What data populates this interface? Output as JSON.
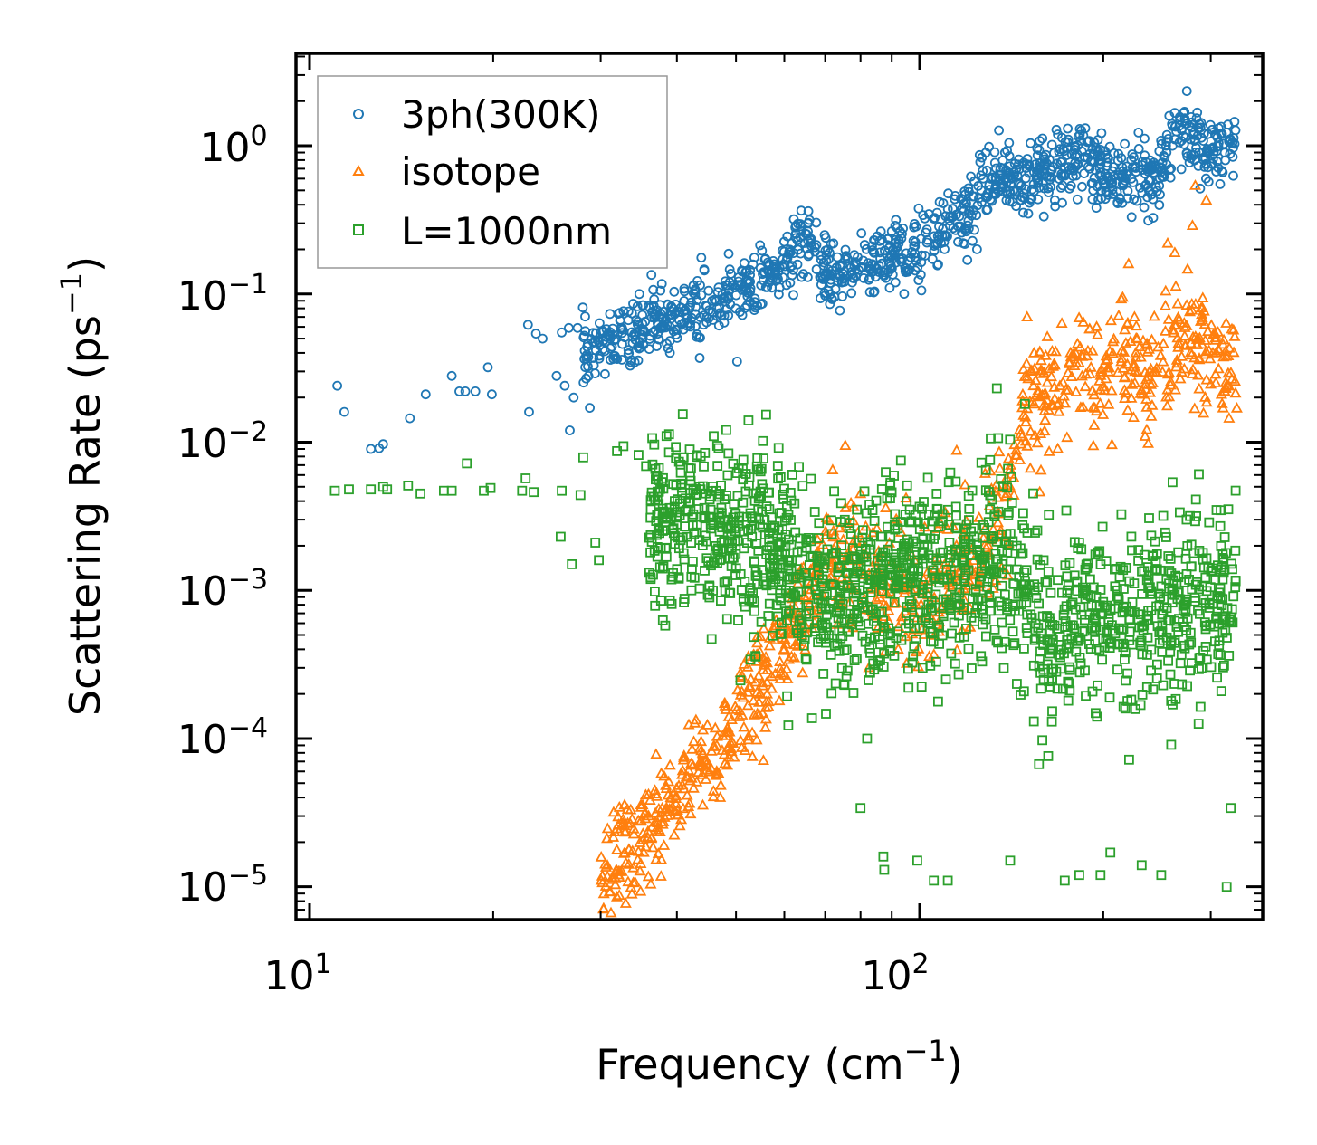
{
  "chart_data": {
    "type": "scatter",
    "title": "",
    "xlabel": "Frequency (cm",
    "xlabel_sup": "−1",
    "xlabel_close": ")",
    "ylabel": "Scattering Rate (ps",
    "ylabel_sup": "−1",
    "ylabel_close": ")",
    "xscale": "log",
    "yscale": "log",
    "xlim": [
      9.5,
      365
    ],
    "ylim": [
      6e-06,
      4.2
    ],
    "x_ticks": [
      {
        "base": "10",
        "exp": "1",
        "value": 10
      },
      {
        "base": "10",
        "exp": "2",
        "value": 100
      }
    ],
    "y_ticks": [
      {
        "base": "10",
        "exp": "0",
        "value": 1
      },
      {
        "base": "10",
        "exp": "−1",
        "value": 0.1
      },
      {
        "base": "10",
        "exp": "−2",
        "value": 0.01
      },
      {
        "base": "10",
        "exp": "−3",
        "value": 0.001
      },
      {
        "base": "10",
        "exp": "−4",
        "value": 0.0001
      },
      {
        "base": "10",
        "exp": "−5",
        "value": 1e-05
      }
    ],
    "legend_position": "top-left",
    "series": [
      {
        "name": "3ph(300K)",
        "marker": "circle",
        "color": "#1f77b4",
        "points": [
          [
            11.1,
            0.024
          ],
          [
            11.4,
            0.016
          ],
          [
            12.6,
            0.009
          ],
          [
            13.0,
            0.0091
          ],
          [
            13.2,
            0.0097
          ],
          [
            14.6,
            0.0145
          ],
          [
            15.5,
            0.021
          ],
          [
            17.1,
            0.028
          ],
          [
            17.6,
            0.022
          ],
          [
            18.0,
            0.022
          ],
          [
            18.7,
            0.022
          ],
          [
            19.6,
            0.032
          ],
          [
            19.9,
            0.021
          ],
          [
            22.8,
            0.062
          ],
          [
            23.5,
            0.054
          ],
          [
            22.9,
            0.016
          ],
          [
            24.1,
            0.05
          ],
          [
            25.4,
            0.028
          ],
          [
            25.9,
            0.055
          ],
          [
            26.6,
            0.059
          ],
          [
            27.5,
            0.059
          ],
          [
            26.2,
            0.024
          ],
          [
            27.1,
            0.02
          ],
          [
            26.7,
            0.012
          ],
          [
            28.5,
            0.044
          ],
          [
            30.3,
            0.048
          ],
          [
            32.5,
            0.036
          ],
          [
            35.3,
            0.057
          ],
          [
            38.7,
            0.043
          ],
          [
            41.1,
            0.064
          ],
          [
            43.6,
            0.037
          ],
          [
            45.8,
            0.075
          ],
          [
            50.2,
            0.035
          ],
          [
            53.7,
            0.093
          ]
        ],
        "trend": [
          [
            28,
            0.04
          ],
          [
            32,
            0.05
          ],
          [
            36,
            0.06
          ],
          [
            40,
            0.07
          ],
          [
            45,
            0.08
          ],
          [
            50,
            0.1
          ],
          [
            55,
            0.12
          ],
          [
            60,
            0.15
          ],
          [
            63,
            0.2
          ],
          [
            66,
            0.25
          ],
          [
            69,
            0.14
          ],
          [
            73,
            0.12
          ],
          [
            78,
            0.14
          ],
          [
            85,
            0.16
          ],
          [
            92,
            0.2
          ],
          [
            96,
            0.18
          ],
          [
            100,
            0.2
          ],
          [
            108,
            0.26
          ],
          [
            112,
            0.3
          ],
          [
            118,
            0.33
          ],
          [
            124,
            0.42
          ],
          [
            130,
            0.55
          ],
          [
            136,
            0.72
          ],
          [
            142,
            0.6
          ],
          [
            150,
            0.55
          ],
          [
            160,
            0.7
          ],
          [
            175,
            0.75
          ],
          [
            185,
            0.85
          ],
          [
            200,
            0.65
          ],
          [
            215,
            0.6
          ],
          [
            235,
            0.6
          ],
          [
            248,
            0.7
          ],
          [
            262,
            1.3
          ],
          [
            275,
            1.1
          ],
          [
            295,
            0.95
          ],
          [
            315,
            1.0
          ],
          [
            330,
            1.1
          ]
        ],
        "trend_spread": 1.6,
        "trend_n": 1200
      },
      {
        "name": "isotope",
        "marker": "triangle",
        "color": "#ff7f0e",
        "points": [
          [
            30.2,
            1.18e-05
          ],
          [
            32.1,
            1.27e-05
          ],
          [
            33.0,
            1.45e-05
          ],
          [
            34.6,
            1.73e-05
          ],
          [
            35.8,
            2.17e-05
          ],
          [
            37.2,
            2.7e-05
          ],
          [
            38.5,
            3.4e-05
          ],
          [
            39.9,
            4.1e-05
          ],
          [
            41.7,
            5.5e-05
          ],
          [
            43.6,
            6.9e-05
          ],
          [
            45.9,
            8.8e-05
          ],
          [
            48.2,
            0.00011
          ],
          [
            50.6,
            0.00014
          ],
          [
            53.4,
            0.00018
          ],
          [
            56.2,
            0.00024
          ],
          [
            59.0,
            0.00033
          ],
          [
            62.5,
            0.00043
          ],
          [
            65.0,
            0.00072
          ],
          [
            68.0,
            0.0022
          ],
          [
            72.0,
            0.0065
          ],
          [
            75.5,
            0.0095
          ],
          [
            80.0,
            0.0045
          ],
          [
            88.0,
            0.0036
          ],
          [
            95.0,
            0.0042
          ],
          [
            115.0,
            0.0088
          ],
          [
            135.0,
            0.0086
          ],
          [
            150.0,
            0.07
          ],
          [
            154.0,
            0.04
          ],
          [
            190.0,
            0.058
          ],
          [
            220.0,
            0.16
          ],
          [
            225.0,
            0.07
          ],
          [
            255.0,
            0.22
          ],
          [
            262.0,
            0.19
          ],
          [
            280.0,
            0.29
          ],
          [
            283.0,
            0.54
          ],
          [
            295.0,
            0.43
          ],
          [
            325.0,
            0.058
          ],
          [
            331.0,
            0.017
          ]
        ],
        "trend": [
          [
            30,
            1.2e-05
          ],
          [
            34,
            1.8e-05
          ],
          [
            38,
            3.1e-05
          ],
          [
            42,
            5.5e-05
          ],
          [
            46,
            9e-05
          ],
          [
            50,
            0.00013
          ],
          [
            55,
            0.00021
          ],
          [
            60,
            0.00036
          ],
          [
            64,
            0.00066
          ],
          [
            68,
            0.0013
          ],
          [
            72,
            0.0016
          ],
          [
            78,
            0.0014
          ],
          [
            85,
            0.0011
          ],
          [
            92,
            0.0009
          ],
          [
            100,
            0.0008
          ],
          [
            110,
            0.0011
          ],
          [
            118,
            0.0012
          ],
          [
            125,
            0.0015
          ],
          [
            132,
            0.0022
          ],
          [
            138,
            0.004
          ],
          [
            143,
            0.008
          ],
          [
            148,
            0.015
          ],
          [
            155,
            0.02
          ],
          [
            165,
            0.025
          ],
          [
            178,
            0.03
          ],
          [
            195,
            0.028
          ],
          [
            215,
            0.035
          ],
          [
            235,
            0.025
          ],
          [
            250,
            0.03
          ],
          [
            265,
            0.04
          ],
          [
            280,
            0.05
          ],
          [
            300,
            0.04
          ],
          [
            320,
            0.025
          ],
          [
            330,
            0.02
          ]
        ],
        "trend_spread": 2.3,
        "trend_n": 1000
      },
      {
        "name": "L=1000nm",
        "marker": "square",
        "color": "#2ca02c",
        "points": [
          [
            11.0,
            0.0047
          ],
          [
            11.6,
            0.0048
          ],
          [
            12.6,
            0.0048
          ],
          [
            13.2,
            0.005
          ],
          [
            13.4,
            0.0048
          ],
          [
            14.5,
            0.0051
          ],
          [
            15.2,
            0.0045
          ],
          [
            16.6,
            0.0047
          ],
          [
            17.1,
            0.0047
          ],
          [
            18.1,
            0.0072
          ],
          [
            19.3,
            0.0047
          ],
          [
            19.8,
            0.0049
          ],
          [
            22.3,
            0.0047
          ],
          [
            22.6,
            0.0057
          ],
          [
            23.3,
            0.0046
          ],
          [
            25.9,
            0.0047
          ],
          [
            27.8,
            0.0044
          ],
          [
            25.8,
            0.0023
          ],
          [
            29.4,
            0.0021
          ],
          [
            29.8,
            0.0016
          ],
          [
            26.9,
            0.0015
          ],
          [
            28.1,
            0.0079
          ],
          [
            32.7,
            0.0094
          ],
          [
            34.6,
            0.0082
          ],
          [
            35.6,
            0.0069
          ],
          [
            31.9,
            0.0087
          ],
          [
            40.3,
            0.0012
          ],
          [
            45.6,
            0.00047
          ],
          [
            54.2,
            0.0078
          ],
          [
            51.4,
            0.0076
          ],
          [
            38.0,
            0.0034
          ],
          [
            41.2,
            0.0027
          ],
          [
            44.3,
            0.0031
          ],
          [
            48.6,
            0.0026
          ],
          [
            55.1,
            0.0034
          ],
          [
            57.2,
            0.0031
          ],
          [
            60.6,
            0.0037
          ],
          [
            75.3,
            0.00023
          ],
          [
            82.0,
            0.0001
          ],
          [
            80.0,
            3.4e-05
          ],
          [
            87.2,
            1.6e-05
          ],
          [
            87.5,
            1.3e-05
          ],
          [
            99.1,
            1.5e-05
          ],
          [
            105.5,
            1.1e-05
          ],
          [
            111.2,
            1.1e-05
          ],
          [
            140.7,
            1.5e-05
          ],
          [
            172.9,
            1.1e-05
          ],
          [
            182.7,
            1.2e-05
          ],
          [
            197.9,
            1.2e-05
          ],
          [
            205.4,
            1.7e-05
          ],
          [
            231.2,
            1.4e-05
          ],
          [
            248.9,
            1.2e-05
          ],
          [
            318.6,
            1e-05
          ],
          [
            323.5,
            3.4e-05
          ]
        ],
        "trend": [
          [
            36,
            0.0032
          ],
          [
            40,
            0.003
          ],
          [
            45,
            0.0028
          ],
          [
            50,
            0.0025
          ],
          [
            55,
            0.0022
          ],
          [
            60,
            0.0016
          ],
          [
            64,
            0.0011
          ],
          [
            68,
            0.0009
          ],
          [
            72,
            0.0008
          ],
          [
            78,
            0.0009
          ],
          [
            85,
            0.0011
          ],
          [
            92,
            0.0012
          ],
          [
            100,
            0.0013
          ],
          [
            110,
            0.0011
          ],
          [
            118,
            0.0013
          ],
          [
            125,
            0.0012
          ],
          [
            130,
            0.0015
          ],
          [
            136,
            0.0018
          ],
          [
            142,
            0.0016
          ],
          [
            148,
            0.0012
          ],
          [
            155,
            0.0007
          ],
          [
            163,
            0.0004
          ],
          [
            172,
            0.0005
          ],
          [
            180,
            0.0006
          ],
          [
            195,
            0.0007
          ],
          [
            210,
            0.0006
          ],
          [
            225,
            0.0007
          ],
          [
            240,
            0.0008
          ],
          [
            255,
            0.0009
          ],
          [
            270,
            0.0008
          ],
          [
            290,
            0.0009
          ],
          [
            310,
            0.001
          ],
          [
            330,
            0.001
          ]
        ],
        "trend_spread": 3.8,
        "trend_n": 1600
      }
    ]
  }
}
